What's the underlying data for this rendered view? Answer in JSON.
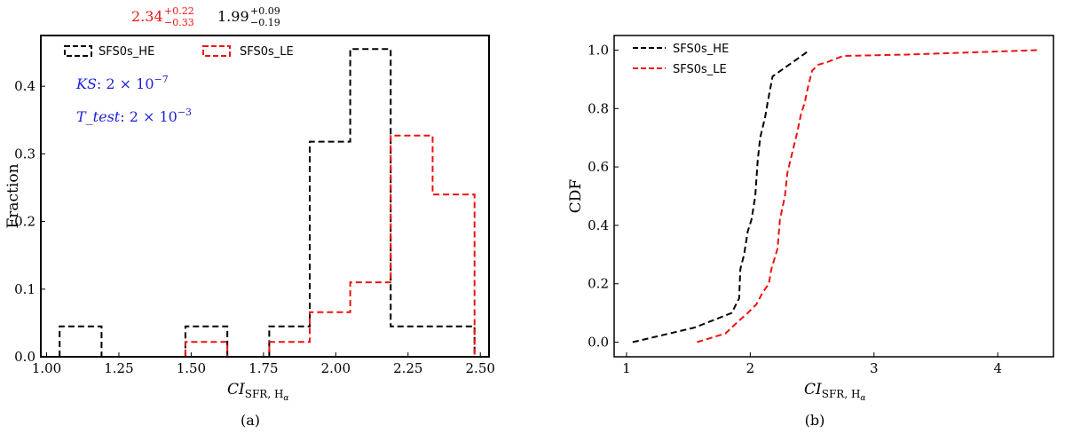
{
  "chart_data": [
    {
      "panel": "a",
      "type": "histogram",
      "caption": "(a)",
      "xlabel": "CI",
      "xlabel_sub": "SFR, H",
      "xlabel_sub2": "α",
      "ylabel": "Fraction",
      "xlim": [
        0.98,
        2.53
      ],
      "ylim": [
        0.0,
        0.475
      ],
      "xticks": [
        1.0,
        1.25,
        1.5,
        1.75,
        2.0,
        2.25,
        2.5
      ],
      "xtick_labels": [
        "1.00",
        "1.25",
        "1.50",
        "1.75",
        "2.00",
        "2.25",
        "2.50"
      ],
      "yticks": [
        0.0,
        0.1,
        0.2,
        0.3,
        0.4
      ],
      "ytick_labels": [
        "0.0",
        "0.1",
        "0.2",
        "0.3",
        "0.4"
      ],
      "bin_edges": [
        1.045,
        1.19,
        1.335,
        1.48,
        1.625,
        1.77,
        1.91,
        2.05,
        2.19,
        2.335,
        2.48
      ],
      "series": [
        {
          "name": "SFS0s_HE",
          "color": "#000000",
          "values": [
            0.045,
            0.0,
            0.0,
            0.045,
            0.0,
            0.045,
            0.318,
            0.455,
            0.045,
            0.045
          ]
        },
        {
          "name": "SFS0s_LE",
          "color": "#ee1111",
          "values": [
            0.0,
            0.0,
            0.0,
            0.022,
            0.0,
            0.022,
            0.066,
            0.11,
            0.327,
            0.24
          ]
        }
      ],
      "annotations": {
        "ks_label": "KS",
        "ks_value": ": 2 × 10",
        "ks_exp": "−7",
        "ttest_label": "T_test",
        "ttest_value": ": 2 × 10",
        "ttest_exp": "−3"
      },
      "medians": [
        {
          "value": "2.34",
          "plus": "+0.22",
          "minus": "−0.33",
          "color": "#ee1111"
        },
        {
          "value": "1.99",
          "plus": "+0.09",
          "minus": "−0.19",
          "color": "#000000"
        }
      ]
    },
    {
      "panel": "b",
      "type": "line",
      "caption": "(b)",
      "xlabel": "CI",
      "xlabel_sub": "SFR, H",
      "xlabel_sub2": "α",
      "ylabel": "CDF",
      "xlim": [
        0.9,
        4.45
      ],
      "ylim": [
        -0.05,
        1.05
      ],
      "xticks": [
        1,
        2,
        3,
        4
      ],
      "xtick_labels": [
        "1",
        "2",
        "3",
        "4"
      ],
      "yticks": [
        0.0,
        0.2,
        0.4,
        0.6,
        0.8,
        1.0
      ],
      "ytick_labels": [
        "0.0",
        "0.2",
        "0.4",
        "0.6",
        "0.8",
        "1.0"
      ],
      "series": [
        {
          "name": "SFS0s_HE",
          "color": "#000000",
          "x": [
            1.05,
            1.55,
            1.85,
            1.91,
            1.92,
            1.95,
            1.98,
            2.01,
            2.04,
            2.06,
            2.08,
            2.12,
            2.14,
            2.18,
            2.48
          ],
          "y": [
            0.0,
            0.05,
            0.1,
            0.15,
            0.25,
            0.3,
            0.38,
            0.42,
            0.5,
            0.62,
            0.7,
            0.77,
            0.82,
            0.91,
            1.0
          ]
        },
        {
          "name": "SFS0s_LE",
          "color": "#ee1111",
          "x": [
            1.57,
            1.8,
            1.9,
            1.98,
            2.05,
            2.1,
            2.15,
            2.17,
            2.22,
            2.24,
            2.28,
            2.3,
            2.34,
            2.38,
            2.41,
            2.44,
            2.47,
            2.5,
            2.55,
            2.63,
            2.75,
            3.3,
            4.32
          ],
          "y": [
            0.0,
            0.03,
            0.07,
            0.1,
            0.13,
            0.17,
            0.2,
            0.25,
            0.32,
            0.42,
            0.5,
            0.58,
            0.65,
            0.72,
            0.78,
            0.82,
            0.88,
            0.93,
            0.95,
            0.96,
            0.98,
            0.985,
            1.0
          ]
        }
      ]
    }
  ]
}
